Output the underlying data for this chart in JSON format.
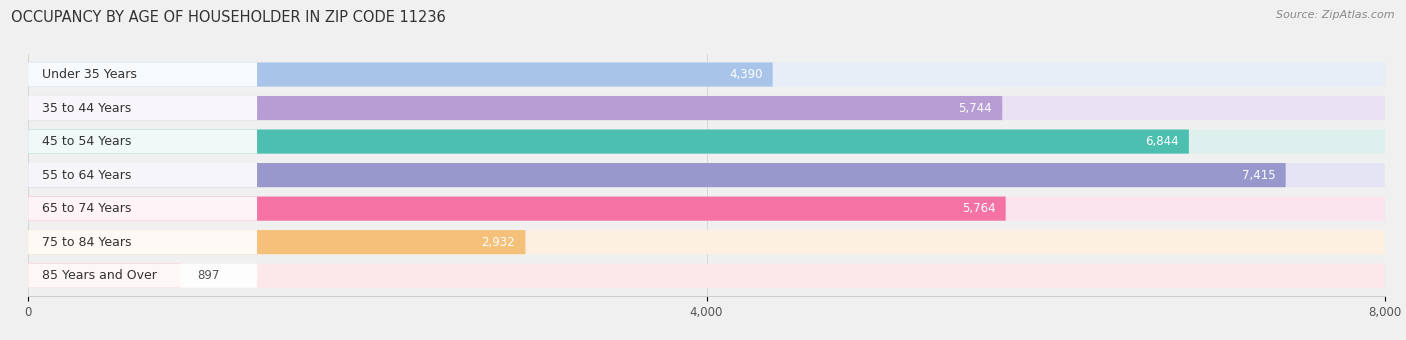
{
  "title": "OCCUPANCY BY AGE OF HOUSEHOLDER IN ZIP CODE 11236",
  "source": "Source: ZipAtlas.com",
  "categories": [
    "Under 35 Years",
    "35 to 44 Years",
    "45 to 54 Years",
    "55 to 64 Years",
    "65 to 74 Years",
    "75 to 84 Years",
    "85 Years and Over"
  ],
  "values": [
    4390,
    5744,
    6844,
    7415,
    5764,
    2932,
    897
  ],
  "bar_colors": [
    "#a8c4e8",
    "#b89dd4",
    "#4dbfb0",
    "#9898cc",
    "#f472a4",
    "#f5c07a",
    "#f0a0a0"
  ],
  "bar_bg_colors": [
    "#e8eef8",
    "#e8e2f2",
    "#ddf0ee",
    "#e4e4f4",
    "#fce4ee",
    "#fdf0e0",
    "#fce8e8"
  ],
  "xlim": [
    0,
    8000
  ],
  "xticks": [
    0,
    4000,
    8000
  ],
  "background_color": "#f0f0f0",
  "bar_height": 0.72,
  "title_fontsize": 10.5,
  "label_fontsize": 9,
  "value_fontsize": 8.5,
  "value_inside_threshold": 1500
}
